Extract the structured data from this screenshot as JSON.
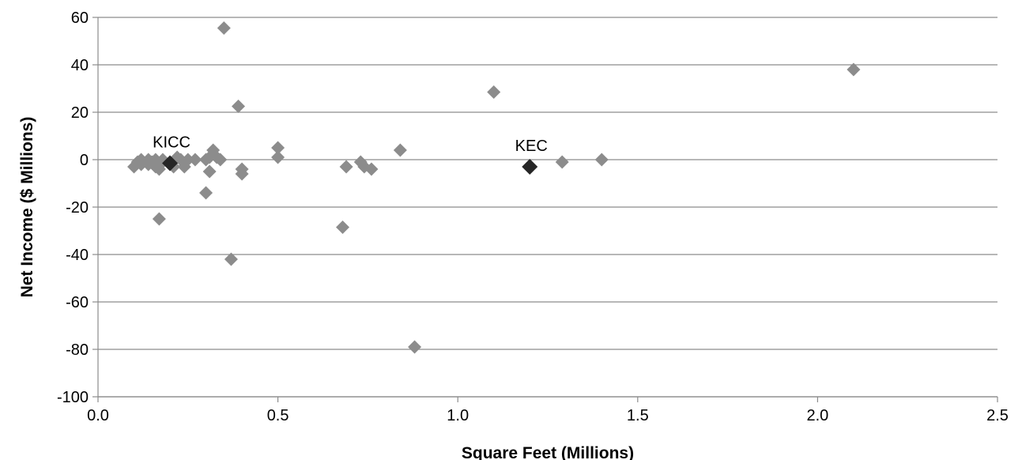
{
  "chart_data": {
    "type": "scatter",
    "title": "",
    "xlabel": "Square Feet (Millions)",
    "ylabel": "Net Income ($ Millions)",
    "xlim": [
      0,
      2.5
    ],
    "ylim": [
      -100,
      60
    ],
    "xticks": [
      0,
      0.5,
      1,
      1.5,
      2,
      2.5
    ],
    "yticks": [
      -100,
      -80,
      -60,
      -40,
      -20,
      0,
      20,
      40,
      60
    ],
    "xtick_labels": [
      "0.0",
      "0.5",
      "1.0",
      "1.5",
      "2.0",
      "2.5"
    ],
    "ytick_labels": [
      "-100",
      "-80",
      "-60",
      "-40",
      "-20",
      "0",
      "20",
      "40",
      "60"
    ],
    "grid": "horizontal",
    "legend": "none",
    "colors": {
      "series": "#8c8c8c",
      "highlight": "#262626",
      "gridline": "#8c8c8c"
    },
    "series": [
      {
        "marker": "diamond",
        "color": "#8c8c8c",
        "points": [
          {
            "x": 0.1,
            "y": -3
          },
          {
            "x": 0.11,
            "y": -1
          },
          {
            "x": 0.12,
            "y": 0
          },
          {
            "x": 0.12,
            "y": -2
          },
          {
            "x": 0.14,
            "y": 0
          },
          {
            "x": 0.14,
            "y": -2
          },
          {
            "x": 0.15,
            "y": -1
          },
          {
            "x": 0.16,
            "y": -3
          },
          {
            "x": 0.16,
            "y": 0
          },
          {
            "x": 0.17,
            "y": -4
          },
          {
            "x": 0.17,
            "y": -25
          },
          {
            "x": 0.18,
            "y": 0
          },
          {
            "x": 0.18,
            "y": -1
          },
          {
            "x": 0.21,
            "y": -3
          },
          {
            "x": 0.22,
            "y": 1
          },
          {
            "x": 0.23,
            "y": 0
          },
          {
            "x": 0.24,
            "y": -3
          },
          {
            "x": 0.25,
            "y": 0
          },
          {
            "x": 0.27,
            "y": 0
          },
          {
            "x": 0.3,
            "y": 0
          },
          {
            "x": 0.3,
            "y": -14
          },
          {
            "x": 0.31,
            "y": -5
          },
          {
            "x": 0.31,
            "y": 1
          },
          {
            "x": 0.32,
            "y": 4
          },
          {
            "x": 0.33,
            "y": 1
          },
          {
            "x": 0.34,
            "y": 0
          },
          {
            "x": 0.35,
            "y": 55.5
          },
          {
            "x": 0.37,
            "y": -42
          },
          {
            "x": 0.39,
            "y": 22.5
          },
          {
            "x": 0.4,
            "y": -4
          },
          {
            "x": 0.4,
            "y": -6
          },
          {
            "x": 0.5,
            "y": 5
          },
          {
            "x": 0.5,
            "y": 1
          },
          {
            "x": 0.68,
            "y": -28.5
          },
          {
            "x": 0.69,
            "y": -3
          },
          {
            "x": 0.73,
            "y": -1
          },
          {
            "x": 0.74,
            "y": -3
          },
          {
            "x": 0.76,
            "y": -4
          },
          {
            "x": 0.84,
            "y": 4
          },
          {
            "x": 0.88,
            "y": -79
          },
          {
            "x": 1.1,
            "y": 28.5
          },
          {
            "x": 1.29,
            "y": -1
          },
          {
            "x": 1.4,
            "y": 0
          },
          {
            "x": 2.1,
            "y": 38
          }
        ]
      },
      {
        "marker": "diamond",
        "color": "#262626",
        "points": [
          {
            "x": 0.2,
            "y": -1.5,
            "label": "KICC"
          },
          {
            "x": 1.2,
            "y": -3,
            "label": "KEC"
          }
        ]
      }
    ]
  }
}
